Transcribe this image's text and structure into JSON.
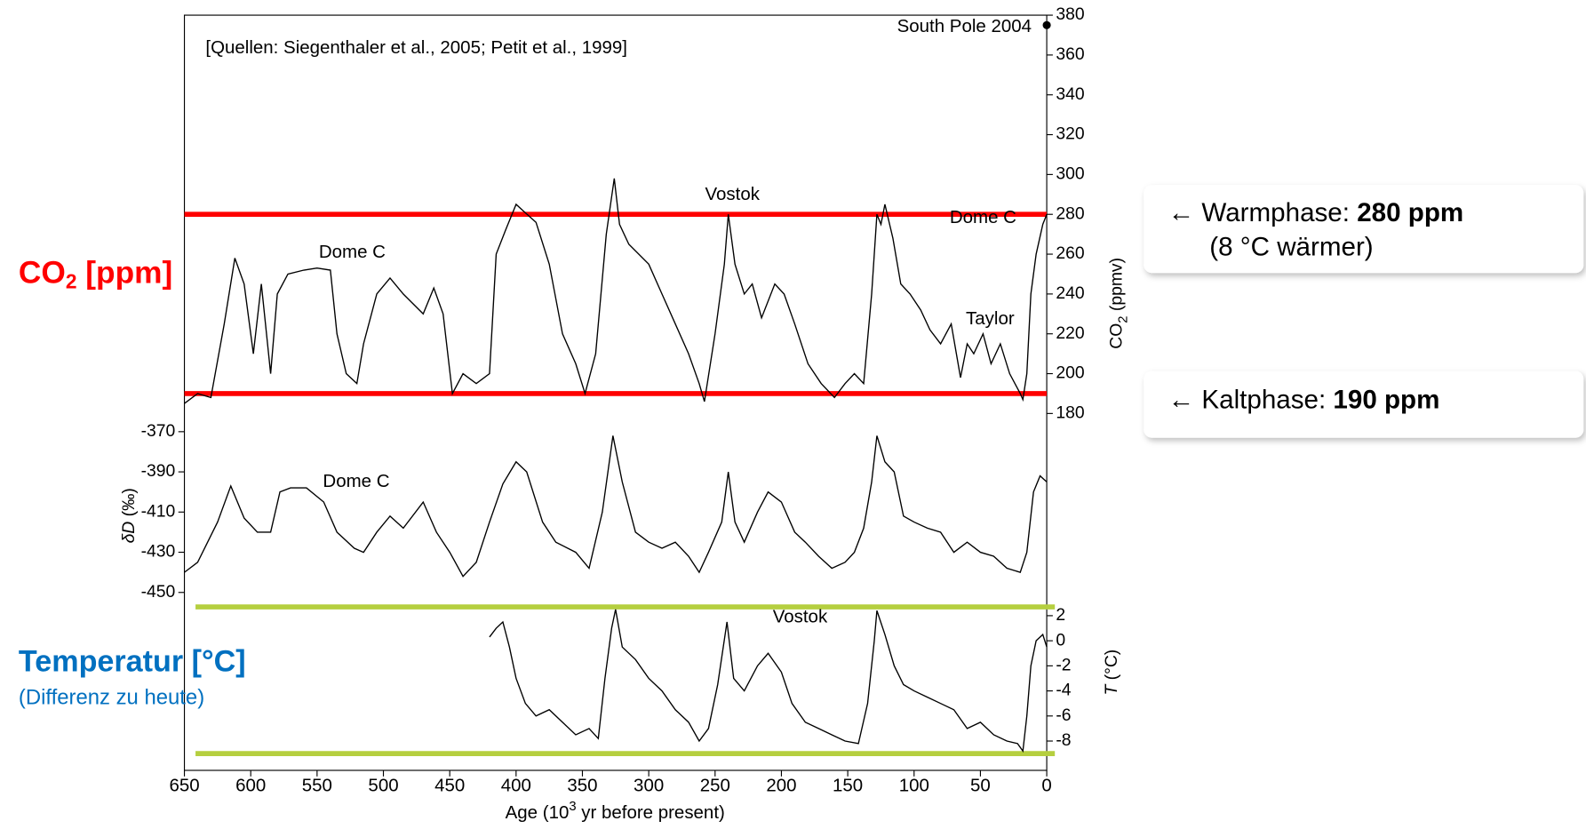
{
  "chart_data": [
    {
      "type": "line",
      "x": [
        650,
        640,
        630,
        620,
        612,
        605,
        598,
        592,
        585,
        580,
        572,
        560,
        550,
        540,
        535,
        528,
        520,
        515,
        505,
        495,
        485,
        470,
        462,
        455,
        448,
        440,
        430,
        420,
        415,
        408,
        400,
        395,
        385,
        375,
        365,
        355,
        348,
        340,
        332,
        326,
        322,
        315,
        300,
        290,
        280,
        270,
        262,
        258,
        250,
        243,
        240,
        235,
        228,
        222,
        215,
        205,
        198,
        190,
        180,
        170,
        160,
        152,
        145,
        138,
        132,
        128,
        125,
        122,
        116,
        110,
        103,
        95,
        88,
        80,
        72,
        65,
        60,
        55,
        48,
        42,
        35,
        28,
        20,
        18,
        15,
        12,
        8,
        3,
        0
      ],
      "values": [
        185,
        190,
        188,
        225,
        258,
        245,
        210,
        245,
        200,
        240,
        250,
        252,
        253,
        252,
        220,
        200,
        195,
        215,
        240,
        248,
        240,
        230,
        243,
        230,
        190,
        200,
        195,
        200,
        260,
        272,
        285,
        282,
        276,
        255,
        220,
        205,
        190,
        210,
        270,
        298,
        275,
        265,
        255,
        240,
        225,
        210,
        195,
        186,
        220,
        255,
        280,
        255,
        240,
        245,
        228,
        245,
        240,
        225,
        205,
        195,
        188,
        195,
        200,
        195,
        240,
        280,
        275,
        285,
        268,
        245,
        240,
        232,
        222,
        215,
        225,
        198,
        215,
        210,
        220,
        205,
        215,
        200,
        190,
        187,
        200,
        240,
        260,
        275,
        280
      ],
      "color": "#000000",
      "ylim": [
        180,
        380
      ],
      "yticks": [
        180,
        200,
        220,
        240,
        260,
        280,
        300,
        320,
        340,
        360,
        380
      ],
      "ylabel": [
        "CO",
        "2",
        " (ppmv)"
      ],
      "marker": {
        "x": 0,
        "value": 375,
        "color": "#000000"
      },
      "hlines": {
        "values": [
          280,
          190
        ],
        "color": "#ff0000"
      },
      "annotations": [
        "[Quellen: Siegenthaler et al., 2005; Petit et al., 1999]",
        "South Pole 2004",
        "Vostok",
        "Dome C",
        "Dome C",
        "Taylor"
      ]
    },
    {
      "type": "line",
      "x": [
        650,
        640,
        625,
        615,
        605,
        595,
        585,
        578,
        570,
        558,
        545,
        535,
        522,
        515,
        505,
        495,
        485,
        470,
        460,
        450,
        440,
        430,
        420,
        410,
        400,
        392,
        380,
        370,
        355,
        345,
        335,
        327,
        320,
        310,
        300,
        290,
        280,
        270,
        262,
        255,
        245,
        240,
        235,
        228,
        218,
        210,
        200,
        190,
        182,
        172,
        162,
        152,
        145,
        138,
        132,
        128,
        122,
        115,
        108,
        100,
        90,
        80,
        70,
        60,
        50,
        40,
        30,
        20,
        15,
        10,
        5,
        0
      ],
      "values": [
        -440,
        -435,
        -415,
        -397,
        -413,
        -420,
        -420,
        -400,
        -398,
        -398,
        -405,
        -420,
        -428,
        -430,
        -420,
        -412,
        -418,
        -405,
        -420,
        -430,
        -442,
        -435,
        -415,
        -396,
        -385,
        -390,
        -415,
        -425,
        -430,
        -438,
        -410,
        -372,
        -395,
        -420,
        -425,
        -428,
        -425,
        -432,
        -440,
        -430,
        -415,
        -390,
        -415,
        -425,
        -410,
        -400,
        -405,
        -420,
        -425,
        -432,
        -438,
        -435,
        -430,
        -418,
        -395,
        -372,
        -385,
        -390,
        -412,
        -415,
        -418,
        -420,
        -430,
        -425,
        -430,
        -432,
        -438,
        -440,
        -430,
        -400,
        -392,
        -395
      ],
      "color": "#000000",
      "ylim": [
        -450,
        -370
      ],
      "yticks": [
        -450,
        -430,
        -410,
        -390,
        -370
      ],
      "ylabel": [
        "δD",
        " (‰)"
      ],
      "annotations": [
        "Dome C"
      ]
    },
    {
      "type": "line",
      "x": [
        420,
        415,
        410,
        405,
        400,
        393,
        385,
        375,
        365,
        355,
        345,
        338,
        333,
        328,
        325,
        320,
        310,
        300,
        290,
        280,
        270,
        262,
        255,
        248,
        241,
        236,
        228,
        218,
        210,
        200,
        192,
        182,
        172,
        162,
        152,
        142,
        135,
        130,
        128,
        122,
        115,
        108,
        100,
        90,
        80,
        70,
        60,
        50,
        40,
        30,
        22,
        18,
        15,
        12,
        8,
        3,
        0
      ],
      "values": [
        0.3,
        1,
        1.5,
        -0.5,
        -3,
        -5,
        -6,
        -5.5,
        -6.5,
        -7.5,
        -7,
        -7.8,
        -3,
        1,
        2.5,
        -0.5,
        -1.5,
        -3,
        -4,
        -5.5,
        -6.5,
        -8,
        -7,
        -3.5,
        1.5,
        -3,
        -4,
        -2,
        -1,
        -2.5,
        -5,
        -6.5,
        -7,
        -7.5,
        -8,
        -8.2,
        -5,
        0,
        2.4,
        0.5,
        -2,
        -3.5,
        -4,
        -4.5,
        -5,
        -5.5,
        -7,
        -6.5,
        -7.5,
        -8,
        -8.2,
        -8.8,
        -6,
        -2,
        0,
        0.5,
        -0.5
      ],
      "color": "#000000",
      "ylim": [
        -9,
        3
      ],
      "yticks": [
        -8,
        -6,
        -4,
        -2,
        0,
        2
      ],
      "ylabel": [
        "T",
        " (°C)"
      ],
      "hlines": {
        "values": [
          2.7,
          -9
        ],
        "color": "#b5cf3f"
      },
      "annotations": [
        "Vostok"
      ],
      "xlim": [
        650,
        0
      ],
      "xticks": [
        650,
        600,
        550,
        500,
        450,
        400,
        350,
        300,
        250,
        200,
        150,
        100,
        50,
        0
      ],
      "xlabel": [
        "Age (10",
        "3",
        " yr before present)"
      ]
    }
  ],
  "side_labels": {
    "co2": [
      "CO",
      "2",
      " [ppm]"
    ],
    "temperature": "Temperatur [°C]",
    "temperature_note": "(Differenz zu heute)"
  },
  "callouts": [
    {
      "lead": "← Warmphase: ",
      "value": "280 ppm",
      "note": "(8 °C wärmer)"
    },
    {
      "lead": "← Kaltphase: ",
      "value": "190 ppm"
    }
  ]
}
